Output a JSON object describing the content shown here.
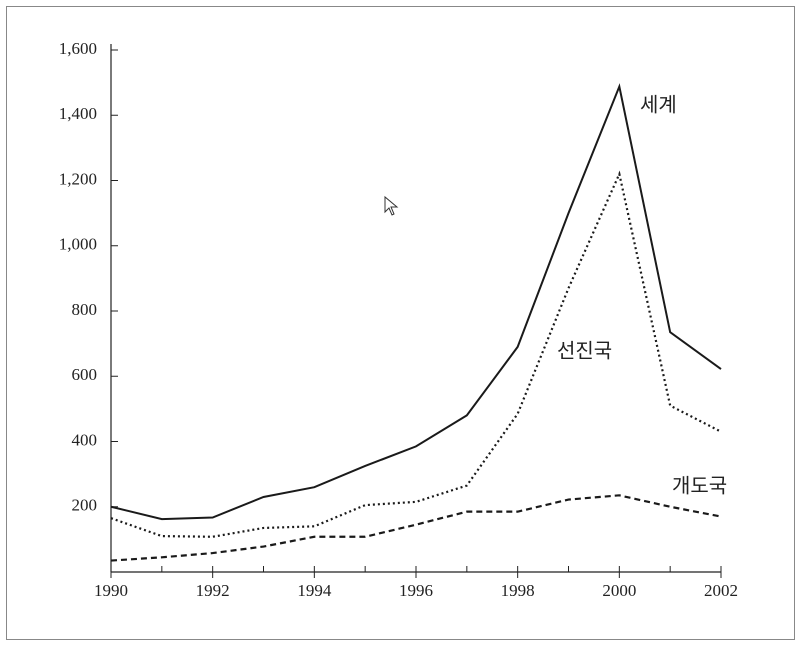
{
  "chart_data": {
    "type": "line",
    "x": [
      1990,
      1991,
      1992,
      1993,
      1994,
      1995,
      1996,
      1997,
      1998,
      1999,
      2000,
      2001,
      2002
    ],
    "series": [
      {
        "name": "세계",
        "color": "#1a1a1a",
        "dash": "solid",
        "values": [
          200,
          162,
          167,
          230,
          260,
          325,
          385,
          480,
          690,
          1100,
          1488,
          735,
          622
        ]
      },
      {
        "name": "선진국",
        "color": "#1a1a1a",
        "dash": "dotted",
        "values": [
          165,
          110,
          108,
          135,
          140,
          205,
          215,
          265,
          485,
          870,
          1220,
          510,
          430
        ]
      },
      {
        "name": "개도국",
        "color": "#1a1a1a",
        "dash": "dashed",
        "values": [
          35,
          45,
          58,
          78,
          108,
          108,
          145,
          185,
          185,
          222,
          235,
          200,
          170
        ]
      }
    ],
    "xlim": [
      1990,
      2002
    ],
    "xticks": [
      1990,
      1992,
      1994,
      1996,
      1998,
      2000,
      2002
    ],
    "ylim": [
      0,
      1600
    ],
    "yticks": [
      {
        "value": 200,
        "label": "200"
      },
      {
        "value": 400,
        "label": "400"
      },
      {
        "value": 600,
        "label": "600"
      },
      {
        "value": 800,
        "label": "800"
      },
      {
        "value": 1000,
        "label": "1,000"
      },
      {
        "value": 1200,
        "label": "1,200"
      },
      {
        "value": 1400,
        "label": "1,400"
      },
      {
        "value": 1600,
        "label": "1,600"
      }
    ],
    "grid": false
  }
}
